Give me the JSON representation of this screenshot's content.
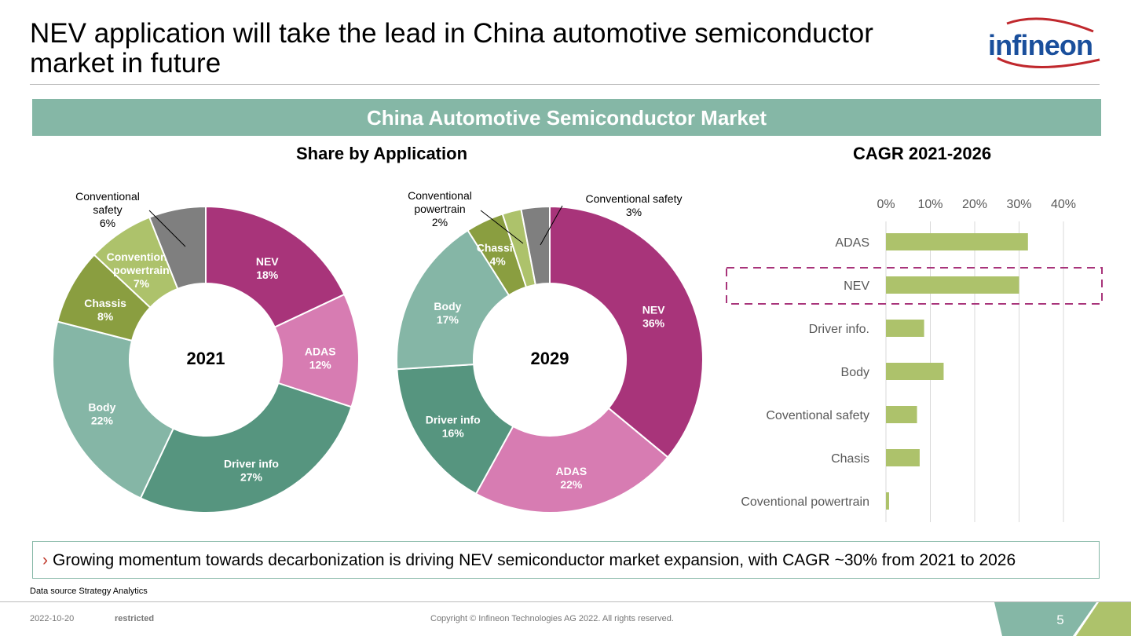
{
  "title": "NEV application will take the lead in China automotive semiconductor market in future",
  "logo": "Infineon",
  "banner": "China Automotive Semiconductor Market",
  "note": "Growing momentum towards decarbonization is driving NEV semiconductor market expansion, with CAGR ~30% from 2021 to 2026",
  "note_bullet": "›",
  "source": "Data source Strategy Analytics",
  "footer": {
    "date": "2022-10-20",
    "classification": "restricted",
    "copyright": "Copyright © Infineon Technologies AG 2022. All rights reserved.",
    "page": "5"
  },
  "chart_data": [
    {
      "type": "pie",
      "title": "Share by Application",
      "center_label": "2021",
      "slices": [
        {
          "name": "NEV",
          "value": 18,
          "label": "18%",
          "color": "#a8347a"
        },
        {
          "name": "ADAS",
          "value": 12,
          "label": "12%",
          "color": "#d77cb2"
        },
        {
          "name": "Driver info",
          "value": 27,
          "label": "27%",
          "color": "#56957f"
        },
        {
          "name": "Body",
          "value": 22,
          "label": "22%",
          "color": "#85b6a6"
        },
        {
          "name": "Chassis",
          "value": 8,
          "label": "8%",
          "color": "#8a9e40"
        },
        {
          "name": "Conventional powertrain",
          "value": 7,
          "label": "7%",
          "color": "#adc26b"
        },
        {
          "name": "Conventional safety",
          "value": 6,
          "label": "6%",
          "color": "#7f7f7f",
          "outside": true
        }
      ]
    },
    {
      "type": "pie",
      "center_label": "2029",
      "slices": [
        {
          "name": "NEV",
          "value": 36,
          "label": "36%",
          "color": "#a8347a"
        },
        {
          "name": "ADAS",
          "value": 22,
          "label": "22%",
          "color": "#d77cb2"
        },
        {
          "name": "Driver info",
          "value": 16,
          "label": "16%",
          "color": "#56957f"
        },
        {
          "name": "Body",
          "value": 17,
          "label": "17%",
          "color": "#85b6a6"
        },
        {
          "name": "Chassis",
          "value": 4,
          "label": "4%",
          "color": "#8a9e40"
        },
        {
          "name": "Conventional powertrain",
          "value": 2,
          "label": "2%",
          "color": "#adc26b",
          "outside": true
        },
        {
          "name": "Conventional safety",
          "value": 3,
          "label": "3%",
          "color": "#7f7f7f",
          "outside": true
        }
      ]
    },
    {
      "type": "bar",
      "title": "CAGR 2021-2026",
      "xlim": [
        0,
        40
      ],
      "ticks": [
        "0%",
        "10%",
        "20%",
        "30%",
        "40%"
      ],
      "highlight": "NEV",
      "color": "#adc26b",
      "categories": [
        "ADAS",
        "NEV",
        "Driver info.",
        "Body",
        "Coventional safety",
        "Chasis",
        "Coventional powertrain"
      ],
      "values": [
        32,
        30,
        8.6,
        13,
        7,
        7.6,
        0.7
      ]
    }
  ]
}
